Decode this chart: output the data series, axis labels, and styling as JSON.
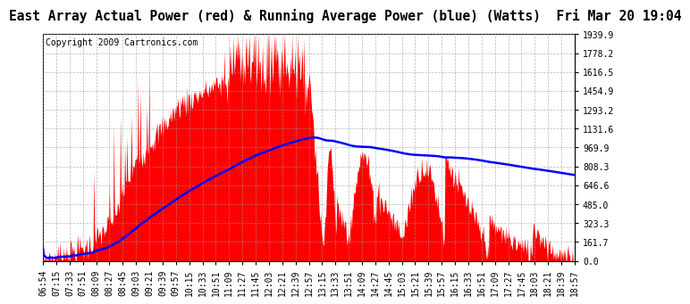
{
  "title": "East Array Actual Power (red) & Running Average Power (blue) (Watts)  Fri Mar 20 19:04",
  "copyright": "Copyright 2009 Cartronics.com",
  "ylabel_right_values": [
    0.0,
    161.7,
    323.3,
    485.0,
    646.6,
    808.3,
    969.9,
    1131.6,
    1293.2,
    1454.9,
    1616.5,
    1778.2,
    1939.9
  ],
  "ymax": 1939.9,
  "ymin": 0.0,
  "fill_color": "red",
  "line_color": "blue",
  "background_color": "white",
  "grid_color": "#999999",
  "title_fontsize": 10.5,
  "copyright_fontsize": 7,
  "tick_fontsize": 7,
  "x_labels": [
    "06:54",
    "07:15",
    "07:33",
    "07:51",
    "08:09",
    "08:27",
    "08:45",
    "09:03",
    "09:21",
    "09:39",
    "09:57",
    "10:15",
    "10:33",
    "10:51",
    "11:09",
    "11:27",
    "11:45",
    "12:03",
    "12:21",
    "12:39",
    "12:57",
    "13:15",
    "13:33",
    "13:51",
    "14:09",
    "14:27",
    "14:45",
    "15:03",
    "15:21",
    "15:39",
    "15:57",
    "16:15",
    "16:33",
    "16:51",
    "17:09",
    "17:27",
    "17:45",
    "18:03",
    "18:21",
    "18:39",
    "18:57"
  ]
}
